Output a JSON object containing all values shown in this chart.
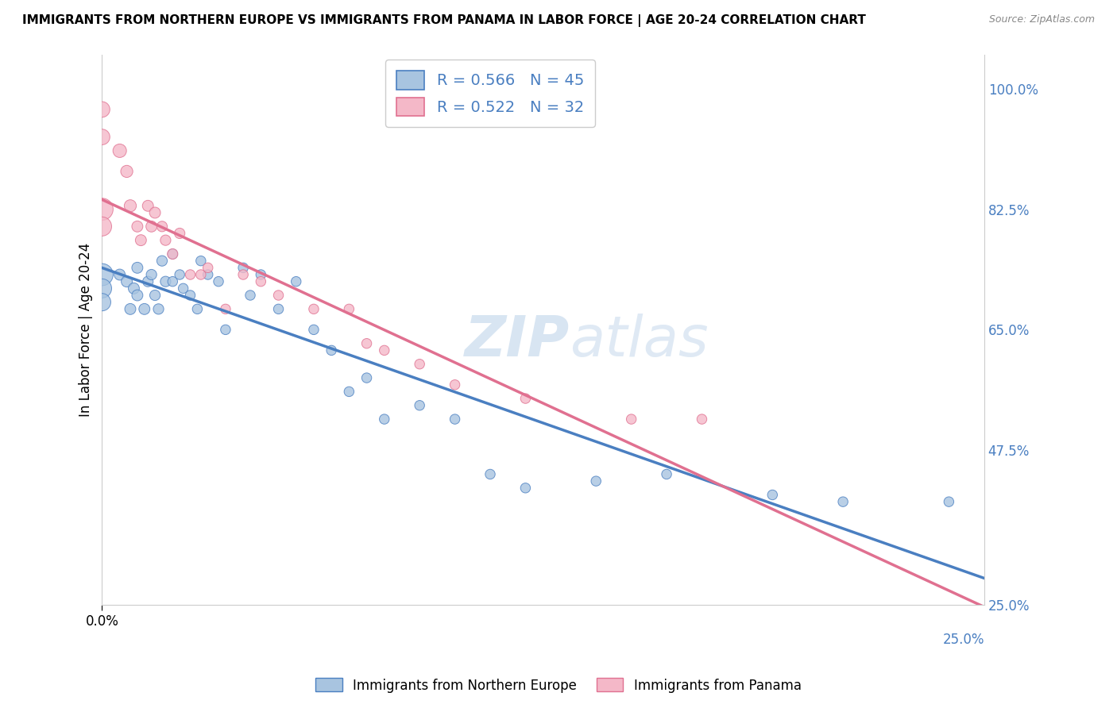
{
  "title": "IMMIGRANTS FROM NORTHERN EUROPE VS IMMIGRANTS FROM PANAMA IN LABOR FORCE | AGE 20-24 CORRELATION CHART",
  "source": "Source: ZipAtlas.com",
  "ylabel": "In Labor Force | Age 20-24",
  "xlim": [
    0.0,
    0.25
  ],
  "ylim": [
    0.25,
    1.05
  ],
  "yticks": [
    0.25,
    0.475,
    0.65,
    0.825,
    1.0
  ],
  "ytick_labels": [
    "25.0%",
    "47.5%",
    "65.0%",
    "82.5%",
    "100.0%"
  ],
  "xticks": [
    0.0
  ],
  "xtick_labels": [
    "0.0%"
  ],
  "x_right_label": "25.0%",
  "blue_R": 0.566,
  "blue_N": 45,
  "pink_R": 0.522,
  "pink_N": 32,
  "blue_color": "#a8c4e0",
  "pink_color": "#f4b8c8",
  "line_blue": "#4a7fc1",
  "line_pink": "#e07090",
  "legend_blue_label": "Immigrants from Northern Europe",
  "legend_pink_label": "Immigrants from Panama",
  "watermark_zip": "ZIP",
  "watermark_atlas": "atlas",
  "blue_scatter_x": [
    0.0,
    0.0,
    0.0,
    0.005,
    0.007,
    0.008,
    0.009,
    0.01,
    0.01,
    0.012,
    0.013,
    0.014,
    0.015,
    0.016,
    0.017,
    0.018,
    0.02,
    0.02,
    0.022,
    0.023,
    0.025,
    0.027,
    0.028,
    0.03,
    0.033,
    0.035,
    0.04,
    0.042,
    0.045,
    0.05,
    0.055,
    0.06,
    0.065,
    0.07,
    0.075,
    0.08,
    0.09,
    0.1,
    0.11,
    0.12,
    0.14,
    0.16,
    0.19,
    0.21,
    0.24
  ],
  "blue_scatter_y": [
    0.73,
    0.71,
    0.69,
    0.73,
    0.72,
    0.68,
    0.71,
    0.7,
    0.74,
    0.68,
    0.72,
    0.73,
    0.7,
    0.68,
    0.75,
    0.72,
    0.76,
    0.72,
    0.73,
    0.71,
    0.7,
    0.68,
    0.75,
    0.73,
    0.72,
    0.65,
    0.74,
    0.7,
    0.73,
    0.68,
    0.72,
    0.65,
    0.62,
    0.56,
    0.58,
    0.52,
    0.54,
    0.52,
    0.44,
    0.42,
    0.43,
    0.44,
    0.41,
    0.4,
    0.4
  ],
  "blue_sizes": [
    400,
    300,
    250,
    100,
    100,
    100,
    100,
    100,
    100,
    100,
    90,
    90,
    90,
    90,
    90,
    90,
    80,
    80,
    80,
    80,
    80,
    80,
    80,
    80,
    80,
    80,
    80,
    80,
    80,
    80,
    80,
    80,
    80,
    80,
    80,
    80,
    80,
    80,
    80,
    80,
    80,
    80,
    80,
    80,
    80
  ],
  "pink_scatter_x": [
    0.0,
    0.0,
    0.0,
    0.0,
    0.005,
    0.007,
    0.008,
    0.01,
    0.011,
    0.013,
    0.014,
    0.015,
    0.017,
    0.018,
    0.02,
    0.022,
    0.025,
    0.028,
    0.03,
    0.035,
    0.04,
    0.045,
    0.05,
    0.06,
    0.07,
    0.075,
    0.08,
    0.09,
    0.1,
    0.12,
    0.15,
    0.17
  ],
  "pink_scatter_y": [
    0.825,
    0.8,
    0.93,
    0.97,
    0.91,
    0.88,
    0.83,
    0.8,
    0.78,
    0.83,
    0.8,
    0.82,
    0.8,
    0.78,
    0.76,
    0.79,
    0.73,
    0.73,
    0.74,
    0.68,
    0.73,
    0.72,
    0.7,
    0.68,
    0.68,
    0.63,
    0.62,
    0.6,
    0.57,
    0.55,
    0.52,
    0.52
  ],
  "pink_sizes": [
    400,
    300,
    200,
    200,
    150,
    120,
    120,
    100,
    100,
    100,
    100,
    100,
    90,
    90,
    90,
    90,
    80,
    80,
    80,
    80,
    80,
    80,
    80,
    80,
    80,
    80,
    80,
    80,
    80,
    80,
    80,
    80
  ]
}
